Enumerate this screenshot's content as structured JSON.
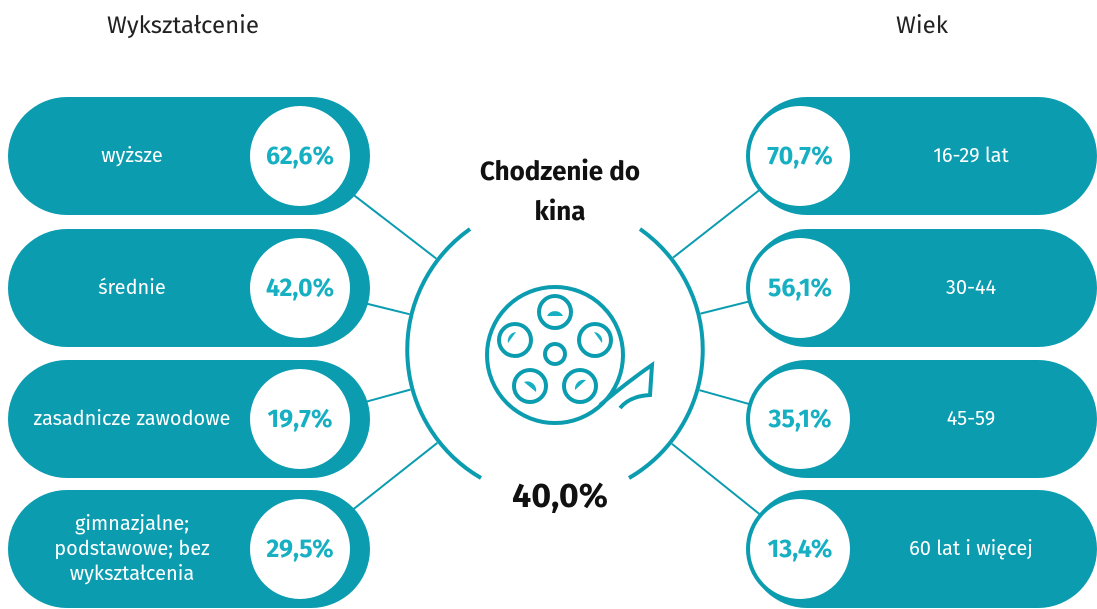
{
  "header": {
    "left_title": "Wykształcenie",
    "right_title": "Wiek"
  },
  "center": {
    "title": "Chodzenie do kina",
    "value": "40,0%"
  },
  "left_items": [
    {
      "label": "wyższe",
      "value": "62,6%"
    },
    {
      "label": "średnie",
      "value": "42,0%"
    },
    {
      "label": "zasadnicze zawodowe",
      "value": "19,7%"
    },
    {
      "label": "gimnazjalne; podstawowe; bez wykształcenia",
      "value": "29,5%"
    }
  ],
  "right_items": [
    {
      "label": "16-29 lat",
      "value": "70,7%"
    },
    {
      "label": "30-44",
      "value": "56,1%"
    },
    {
      "label": "45-59",
      "value": "35,1%"
    },
    {
      "label": "60 lat i więcej",
      "value": "13,4%"
    }
  ]
}
